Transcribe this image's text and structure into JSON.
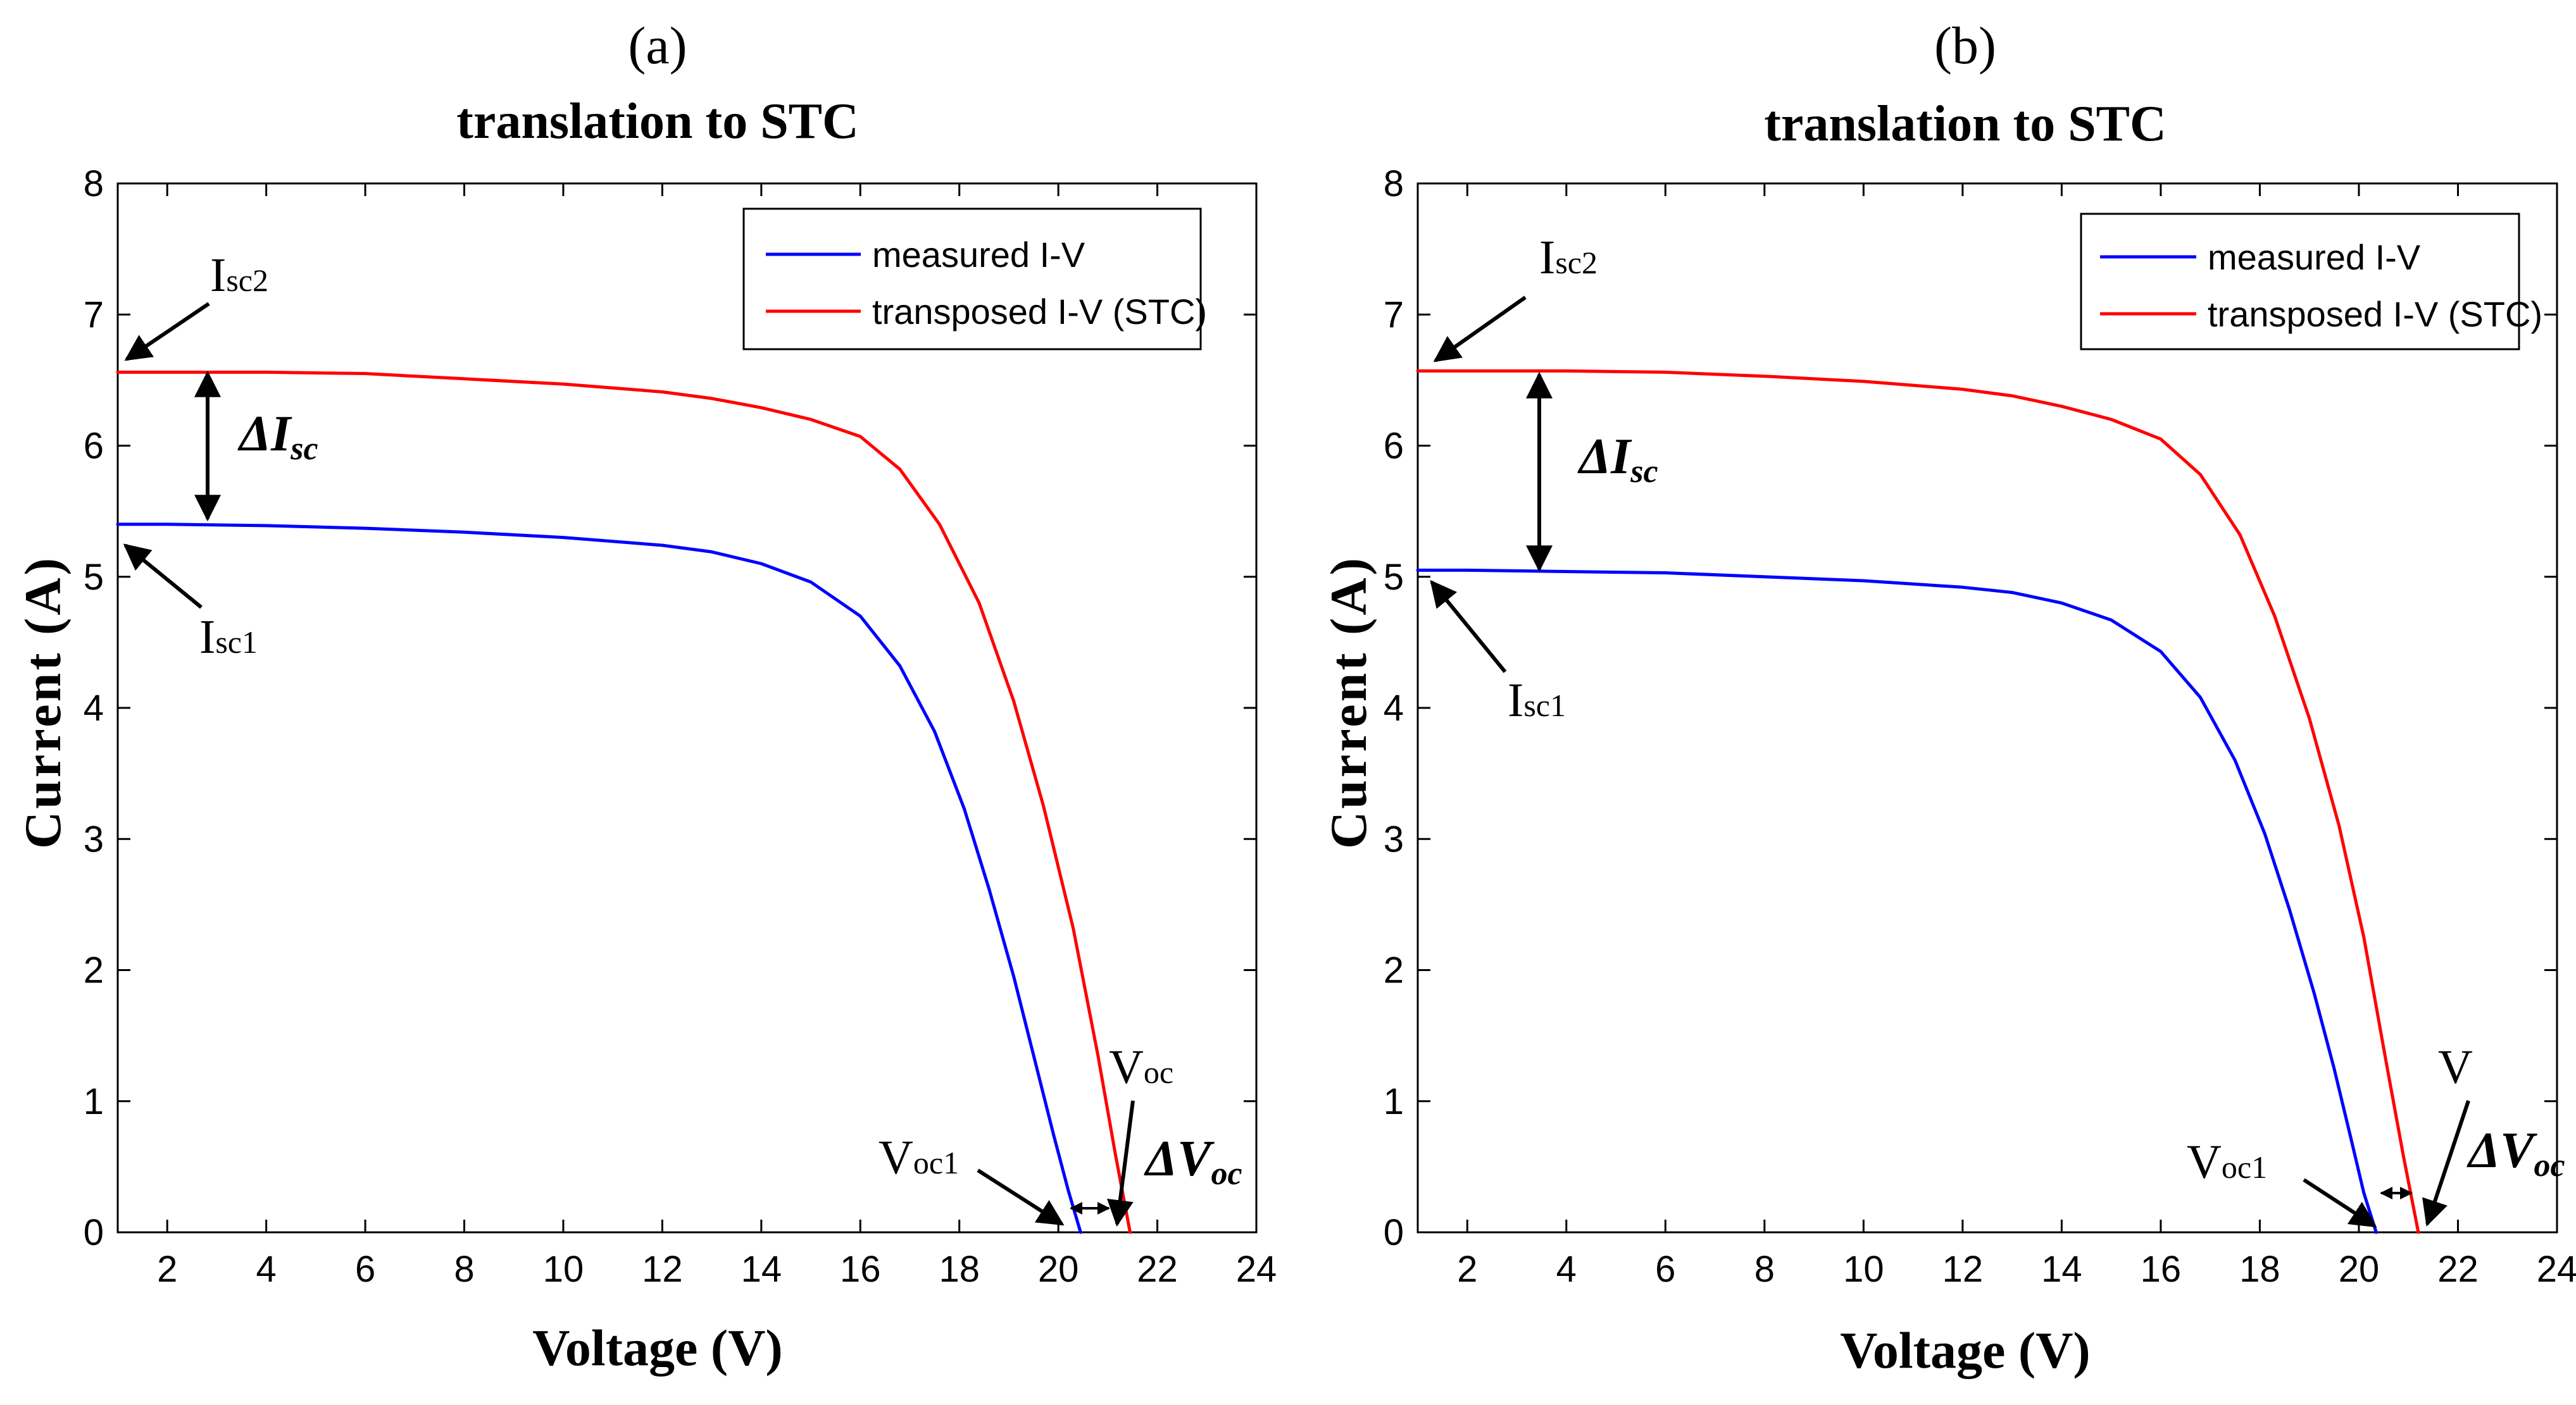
{
  "colors": {
    "measured": "#0000ff",
    "transposed": "#ff0000",
    "axis": "#000000",
    "tickText": "#262626"
  },
  "chart_data": [
    {
      "type": "line",
      "panel_label": "(a)",
      "title": "translation to STC",
      "xlabel": "Voltage (V)",
      "ylabel": "Current (A)",
      "xlim": [
        1,
        24
      ],
      "ylim": [
        0,
        8
      ],
      "xticks": [
        2,
        4,
        6,
        8,
        10,
        12,
        14,
        16,
        18,
        20,
        22,
        24
      ],
      "yticks": [
        0,
        1,
        2,
        3,
        4,
        5,
        6,
        7,
        8
      ],
      "legend": [
        "measured I-V",
        "transposed I-V (STC)"
      ],
      "legend_location": "top-right",
      "series": [
        {
          "name": "measured I-V",
          "color": "#0000ff",
          "x": [
            1,
            2,
            4,
            6,
            8,
            10,
            12,
            13,
            14,
            15,
            16,
            16.8,
            17.5,
            18.1,
            18.6,
            19.1,
            19.5,
            19.9,
            20.2,
            20.45
          ],
          "y": [
            5.4,
            5.4,
            5.39,
            5.37,
            5.34,
            5.3,
            5.24,
            5.19,
            5.1,
            4.96,
            4.7,
            4.32,
            3.82,
            3.23,
            2.62,
            1.95,
            1.35,
            0.75,
            0.32,
            0.0
          ]
        },
        {
          "name": "transposed I-V (STC)",
          "color": "#ff0000",
          "x": [
            1,
            2,
            4,
            6,
            8,
            10,
            12,
            13,
            14,
            15,
            16,
            16.8,
            17.6,
            18.4,
            19.1,
            19.7,
            20.3,
            20.8,
            21.15,
            21.45
          ],
          "y": [
            6.56,
            6.56,
            6.56,
            6.55,
            6.51,
            6.47,
            6.41,
            6.36,
            6.29,
            6.2,
            6.07,
            5.82,
            5.4,
            4.8,
            4.05,
            3.25,
            2.32,
            1.35,
            0.6,
            0.0
          ]
        }
      ],
      "annotations": {
        "isc2": {
          "main": "I",
          "sub": "sc2"
        },
        "isc1": {
          "main": "I",
          "sub": "sc1"
        },
        "delta_isc": {
          "main": "ΔI",
          "sub": "sc"
        },
        "voc": {
          "main": "V",
          "sub": "oc"
        },
        "voc1": {
          "main": "V",
          "sub": "oc1"
        },
        "delta_voc": {
          "main": "ΔV",
          "sub": "oc"
        }
      }
    },
    {
      "type": "line",
      "panel_label": "(b)",
      "title": "translation to STC",
      "xlabel": "Voltage (V)",
      "ylabel": "Current (A)",
      "xlim": [
        1,
        24
      ],
      "ylim": [
        0,
        8
      ],
      "xticks": [
        2,
        4,
        6,
        8,
        10,
        12,
        14,
        16,
        18,
        20,
        22,
        24
      ],
      "yticks": [
        0,
        1,
        2,
        3,
        4,
        5,
        6,
        7,
        8
      ],
      "legend": [
        "measured I-V",
        "transposed I-V (STC)"
      ],
      "legend_location": "top-right",
      "series": [
        {
          "name": "measured I-V",
          "color": "#0000ff",
          "x": [
            1,
            2,
            4,
            6,
            8,
            10,
            12,
            13,
            14,
            15,
            16,
            16.8,
            17.5,
            18.1,
            18.6,
            19.1,
            19.5,
            19.85,
            20.1,
            20.35
          ],
          "y": [
            5.05,
            5.05,
            5.04,
            5.03,
            5.0,
            4.97,
            4.92,
            4.88,
            4.8,
            4.67,
            4.43,
            4.08,
            3.6,
            3.04,
            2.46,
            1.82,
            1.25,
            0.7,
            0.3,
            0.0
          ]
        },
        {
          "name": "transposed I-V (STC)",
          "color": "#ff0000",
          "x": [
            1,
            2,
            4,
            6,
            8,
            10,
            12,
            13,
            14,
            15,
            16,
            16.8,
            17.6,
            18.3,
            19.0,
            19.6,
            20.1,
            20.55,
            20.9,
            21.2
          ],
          "y": [
            6.57,
            6.57,
            6.57,
            6.56,
            6.53,
            6.49,
            6.43,
            6.38,
            6.3,
            6.2,
            6.05,
            5.78,
            5.32,
            4.7,
            3.92,
            3.1,
            2.25,
            1.3,
            0.58,
            0.0
          ]
        }
      ],
      "annotations": {
        "isc2": {
          "main": "I",
          "sub": "sc2"
        },
        "isc1": {
          "main": "I",
          "sub": "sc1"
        },
        "delta_isc": {
          "main": "ΔI",
          "sub": "sc"
        },
        "voc": {
          "main": "V",
          "sub": ""
        },
        "voc1": {
          "main": "V",
          "sub": "oc1"
        },
        "delta_voc": {
          "main": "ΔV",
          "sub": "oc"
        }
      }
    }
  ]
}
